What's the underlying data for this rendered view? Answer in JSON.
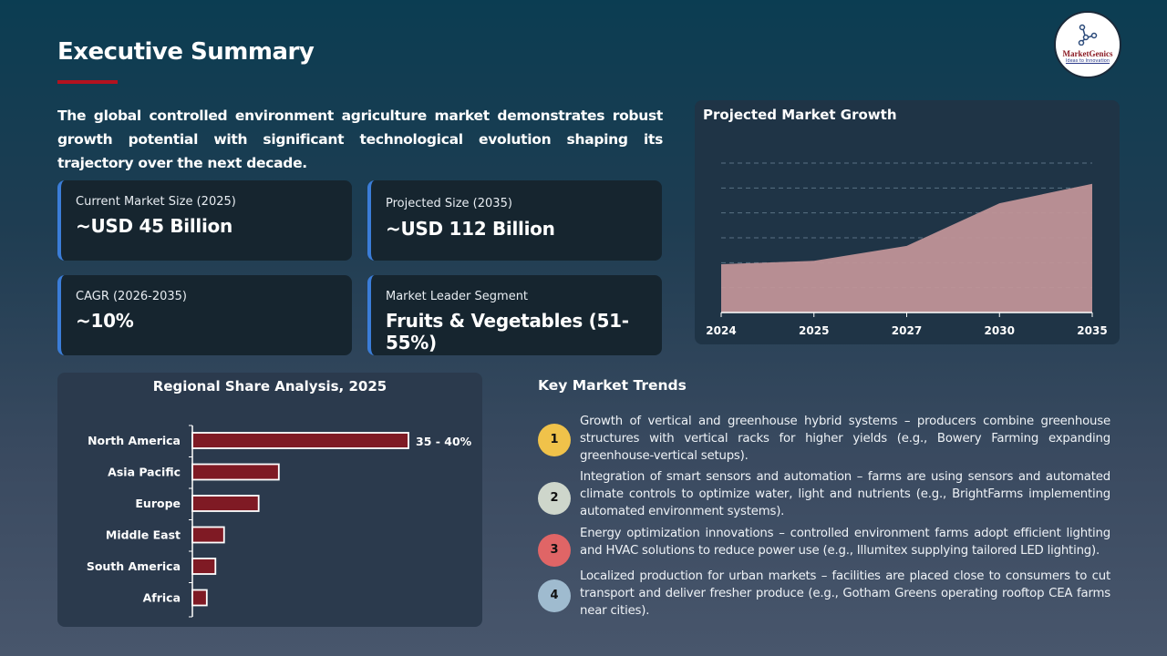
{
  "header": {
    "title": "Executive Summary",
    "logo": {
      "name": "MarketGenics",
      "tagline": "Ideas to Innovation"
    }
  },
  "intro": "The global controlled environment agriculture market demonstrates robust growth potential with significant technological evolution shaping its trajectory over the next decade.",
  "metrics": [
    {
      "label": "Current Market Size (2025)",
      "value": "~USD 45 Billion"
    },
    {
      "label": "Projected Size (2035)",
      "value": "~USD 112 Billion"
    },
    {
      "label": "CAGR (2026-2035)",
      "value": "~10%"
    },
    {
      "label": "Market Leader Segment",
      "value": "Fruits & Vegetables (51-55%)"
    }
  ],
  "colors": {
    "accent_red": "#b3121f",
    "card_border": "#3b7dd8",
    "bar_fill": "#7f1a24",
    "area_fill": "#c09498"
  },
  "chart_data": [
    {
      "type": "area",
      "title": "Projected Market Growth",
      "categories": [
        "2024",
        "2025",
        "2027",
        "2030",
        "2035"
      ],
      "values": [
        42,
        45,
        58,
        95,
        112
      ],
      "ylim": [
        0,
        130
      ],
      "grid": true,
      "y_axis_labels_shown": false
    },
    {
      "type": "bar",
      "orientation": "horizontal",
      "title": "Regional Share Analysis, 2025",
      "categories": [
        "North America",
        "Asia Pacific",
        "Europe",
        "Middle East",
        "South America",
        "Africa"
      ],
      "values": [
        37.5,
        15,
        11.5,
        5.5,
        4,
        2.5
      ],
      "data_labels": [
        "35 - 40%",
        "",
        "",
        "",
        "",
        ""
      ]
    }
  ],
  "trends": {
    "title": "Key Market Trends",
    "items": [
      {
        "num": "1",
        "color": "#f0c24a",
        "text": "Growth of vertical and greenhouse hybrid systems – producers combine greenhouse structures with vertical racks for higher yields (e.g., Bowery Farming expanding greenhouse-vertical setups)."
      },
      {
        "num": "2",
        "color": "#ced6cb",
        "text": "Integration of smart sensors and automation – farms are using sensors and automated climate controls to optimize water, light and nutrients (e.g., BrightFarms implementing automated environment systems)."
      },
      {
        "num": "3",
        "color": "#e06566",
        "text": "Energy optimization innovations – controlled environment farms adopt efficient lighting and HVAC solutions to reduce power use (e.g., Illumitex supplying tailored LED lighting)."
      },
      {
        "num": "4",
        "color": "#9fbbcf",
        "text": "Localized production for urban markets – facilities are placed close to consumers to cut transport and deliver fresher produce (e.g., Gotham Greens operating rooftop CEA farms near cities)."
      }
    ]
  }
}
